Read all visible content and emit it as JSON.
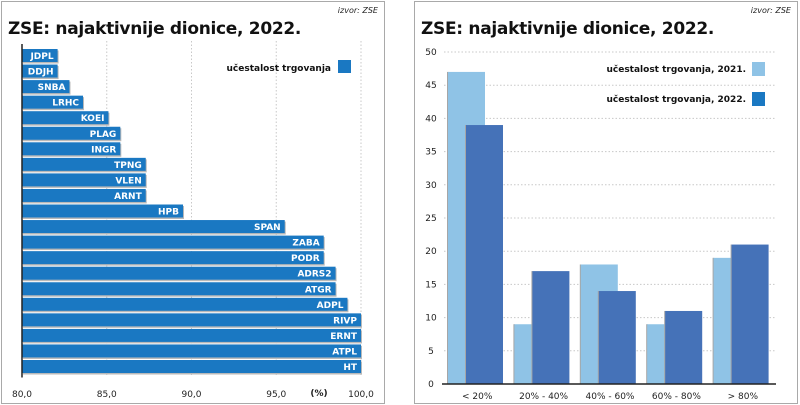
{
  "left_chart": {
    "source": "izvor: ZSE",
    "title": "ZSE: najaktivnije dionice, 2022."
  },
  "right_chart": {
    "source": "izvor: ZSE",
    "title": "ZSE: najaktivnije dionice, 2022."
  },
  "colors": {
    "bar_primary": "#1a78c2",
    "bar_2021": "#8fc3e6",
    "bar_2022": "#4572b8"
  },
  "chart_data": [
    {
      "type": "bar",
      "orientation": "horizontal",
      "title": "ZSE: najaktivnije dionice, 2022.",
      "source": "izvor: ZSE",
      "xlabel": "(%)",
      "ylabel": "",
      "xlim": [
        80,
        100
      ],
      "xticks": [
        "80,0",
        "85,0",
        "90,0",
        "95,0",
        "100,0"
      ],
      "xtick_values": [
        80,
        85,
        90,
        95,
        100
      ],
      "grid": true,
      "legend": {
        "entries": [
          "učestalost trgovanja"
        ],
        "placement": "top-right"
      },
      "categories": [
        "JDPL",
        "DDJH",
        "SNBA",
        "LRHC",
        "KOEI",
        "PLAG",
        "INGR",
        "TPNG",
        "VLEN",
        "ARNT",
        "HPB",
        "SPAN",
        "ZABA",
        "PODR",
        "ADRS2",
        "ATGR",
        "ADPL",
        "RIVP",
        "ERNT",
        "ATPL",
        "HT"
      ],
      "series": [
        {
          "name": "učestalost trgovanja",
          "values": [
            82.1,
            82.1,
            82.8,
            83.6,
            85.1,
            85.8,
            85.8,
            87.3,
            87.3,
            87.3,
            89.5,
            95.5,
            97.8,
            97.8,
            98.5,
            98.5,
            99.2,
            100.0,
            100.0,
            100.0,
            100.0
          ]
        }
      ]
    },
    {
      "type": "bar",
      "orientation": "vertical",
      "title": "ZSE: najaktivnije dionice, 2022.",
      "source": "izvor: ZSE",
      "xlabel": "",
      "ylabel": "",
      "ylim": [
        0,
        50
      ],
      "yticks": [
        0,
        5,
        10,
        15,
        20,
        25,
        30,
        35,
        40,
        45,
        50
      ],
      "grid": true,
      "legend": {
        "entries": [
          "učestalost trgovanja, 2021.",
          "učestalost trgovanja, 2022."
        ],
        "placement": "top-right"
      },
      "categories": [
        "< 20%",
        "20% - 40%",
        "40% - 60%",
        "60% - 80%",
        "> 80%"
      ],
      "series": [
        {
          "name": "učestalost trgovanja, 2021.",
          "values": [
            47,
            9,
            18,
            9,
            19
          ]
        },
        {
          "name": "učestalost trgovanja, 2022.",
          "values": [
            39,
            17,
            14,
            11,
            21
          ]
        }
      ]
    }
  ]
}
